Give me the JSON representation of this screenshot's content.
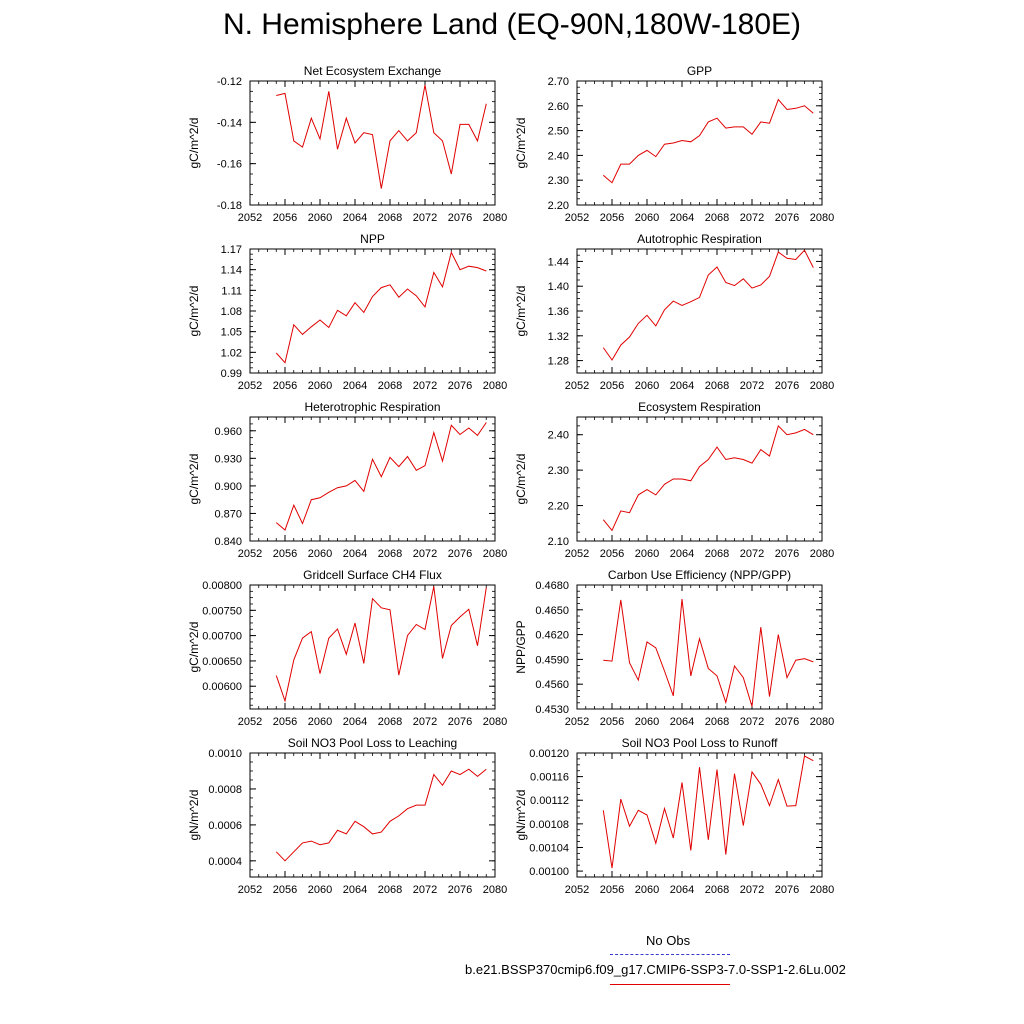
{
  "title": "N. Hemisphere Land (EQ-90N,180W-180E)",
  "legend": {
    "obs_label": "No Obs",
    "obs_color": "#3a3acc",
    "model_label": "b.e21.BSSP370cmip6.f09_g17.CMIP6-SSP3-7.0-SSP1-2.6Lu.002",
    "model_color": "#e00000"
  },
  "chart_data": [
    {
      "type": "line",
      "title": "Net Ecosystem Exchange",
      "ylabel": "gC/m^2/d",
      "xlim": [
        2052,
        2080
      ],
      "xticks": [
        "2052",
        "2056",
        "2060",
        "2064",
        "2068",
        "2072",
        "2076",
        "2080"
      ],
      "ylim": [
        -0.18,
        -0.12
      ],
      "yticks": [
        "-0.18",
        "-0.16",
        "-0.14",
        "-0.12"
      ],
      "x": [
        2055,
        2056,
        2057,
        2058,
        2059,
        2060,
        2061,
        2062,
        2063,
        2064,
        2065,
        2066,
        2067,
        2068,
        2069,
        2070,
        2071,
        2072,
        2073,
        2074,
        2075,
        2076,
        2077,
        2078,
        2079
      ],
      "series": [
        {
          "values": [
            -0.127,
            -0.126,
            -0.149,
            -0.152,
            -0.138,
            -0.148,
            -0.125,
            -0.153,
            -0.138,
            -0.15,
            -0.145,
            -0.146,
            -0.172,
            -0.149,
            -0.144,
            -0.149,
            -0.145,
            -0.122,
            -0.145,
            -0.149,
            -0.165,
            -0.141,
            -0.141,
            -0.149,
            -0.131
          ]
        }
      ]
    },
    {
      "type": "line",
      "title": "GPP",
      "ylabel": "gC/m^2/d",
      "xlim": [
        2052,
        2080
      ],
      "xticks": [
        "2052",
        "2056",
        "2060",
        "2064",
        "2068",
        "2072",
        "2076",
        "2080"
      ],
      "ylim": [
        2.2,
        2.7
      ],
      "yticks": [
        "2.20",
        "2.30",
        "2.40",
        "2.50",
        "2.60",
        "2.70"
      ],
      "x": [
        2055,
        2056,
        2057,
        2058,
        2059,
        2060,
        2061,
        2062,
        2063,
        2064,
        2065,
        2066,
        2067,
        2068,
        2069,
        2070,
        2071,
        2072,
        2073,
        2074,
        2075,
        2076,
        2077,
        2078,
        2079
      ],
      "series": [
        {
          "values": [
            2.32,
            2.29,
            2.365,
            2.365,
            2.4,
            2.42,
            2.395,
            2.445,
            2.45,
            2.46,
            2.455,
            2.48,
            2.535,
            2.55,
            2.51,
            2.515,
            2.515,
            2.485,
            2.535,
            2.53,
            2.625,
            2.585,
            2.59,
            2.6,
            2.57
          ]
        }
      ]
    },
    {
      "type": "line",
      "title": "NPP",
      "ylabel": "gC/m^2/d",
      "xlim": [
        2052,
        2080
      ],
      "xticks": [
        "2052",
        "2056",
        "2060",
        "2064",
        "2068",
        "2072",
        "2076",
        "2080"
      ],
      "ylim": [
        0.99,
        1.17
      ],
      "yticks": [
        "0.99",
        "1.02",
        "1.05",
        "1.08",
        "1.11",
        "1.14",
        "1.17"
      ],
      "x": [
        2055,
        2056,
        2057,
        2058,
        2059,
        2060,
        2061,
        2062,
        2063,
        2064,
        2065,
        2066,
        2067,
        2068,
        2069,
        2070,
        2071,
        2072,
        2073,
        2074,
        2075,
        2076,
        2077,
        2078,
        2079
      ],
      "series": [
        {
          "values": [
            1.019,
            1.005,
            1.06,
            1.046,
            1.057,
            1.067,
            1.056,
            1.081,
            1.073,
            1.092,
            1.078,
            1.101,
            1.114,
            1.118,
            1.1,
            1.112,
            1.102,
            1.086,
            1.136,
            1.115,
            1.165,
            1.14,
            1.145,
            1.143,
            1.138
          ]
        }
      ]
    },
    {
      "type": "line",
      "title": "Autotrophic Respiration",
      "ylabel": "gC/m^2/d",
      "xlim": [
        2052,
        2080
      ],
      "xticks": [
        "2052",
        "2056",
        "2060",
        "2064",
        "2068",
        "2072",
        "2076",
        "2080"
      ],
      "ylim": [
        1.26,
        1.46
      ],
      "yticks": [
        "1.28",
        "1.32",
        "1.36",
        "1.40",
        "1.44"
      ],
      "x": [
        2055,
        2056,
        2057,
        2058,
        2059,
        2060,
        2061,
        2062,
        2063,
        2064,
        2065,
        2066,
        2067,
        2068,
        2069,
        2070,
        2071,
        2072,
        2073,
        2074,
        2075,
        2076,
        2077,
        2078,
        2079
      ],
      "series": [
        {
          "values": [
            1.301,
            1.281,
            1.305,
            1.318,
            1.34,
            1.353,
            1.336,
            1.362,
            1.376,
            1.369,
            1.375,
            1.382,
            1.418,
            1.431,
            1.406,
            1.401,
            1.412,
            1.397,
            1.402,
            1.416,
            1.455,
            1.445,
            1.443,
            1.458,
            1.43
          ]
        }
      ]
    },
    {
      "type": "line",
      "title": "Heterotrophic Respiration",
      "ylabel": "gC/m^2/d",
      "xlim": [
        2052,
        2080
      ],
      "xticks": [
        "2052",
        "2056",
        "2060",
        "2064",
        "2068",
        "2072",
        "2076",
        "2080"
      ],
      "ylim": [
        0.84,
        0.975
      ],
      "yticks": [
        "0.840",
        "0.870",
        "0.900",
        "0.930",
        "0.960"
      ],
      "x": [
        2055,
        2056,
        2057,
        2058,
        2059,
        2060,
        2061,
        2062,
        2063,
        2064,
        2065,
        2066,
        2067,
        2068,
        2069,
        2070,
        2071,
        2072,
        2073,
        2074,
        2075,
        2076,
        2077,
        2078,
        2079
      ],
      "series": [
        {
          "values": [
            0.86,
            0.852,
            0.879,
            0.859,
            0.885,
            0.887,
            0.893,
            0.898,
            0.9,
            0.906,
            0.894,
            0.929,
            0.91,
            0.931,
            0.921,
            0.932,
            0.917,
            0.922,
            0.958,
            0.927,
            0.966,
            0.956,
            0.963,
            0.955,
            0.969
          ]
        }
      ]
    },
    {
      "type": "line",
      "title": "Ecosystem Respiration",
      "ylabel": "gC/m^2/d",
      "xlim": [
        2052,
        2080
      ],
      "xticks": [
        "2052",
        "2056",
        "2060",
        "2064",
        "2068",
        "2072",
        "2076",
        "2080"
      ],
      "ylim": [
        2.1,
        2.45
      ],
      "yticks": [
        "2.10",
        "2.20",
        "2.30",
        "2.40"
      ],
      "x": [
        2055,
        2056,
        2057,
        2058,
        2059,
        2060,
        2061,
        2062,
        2063,
        2064,
        2065,
        2066,
        2067,
        2068,
        2069,
        2070,
        2071,
        2072,
        2073,
        2074,
        2075,
        2076,
        2077,
        2078,
        2079
      ],
      "series": [
        {
          "values": [
            2.16,
            2.13,
            2.185,
            2.18,
            2.23,
            2.245,
            2.23,
            2.26,
            2.275,
            2.275,
            2.27,
            2.31,
            2.33,
            2.365,
            2.33,
            2.335,
            2.33,
            2.32,
            2.358,
            2.34,
            2.425,
            2.4,
            2.405,
            2.415,
            2.4
          ]
        }
      ]
    },
    {
      "type": "line",
      "title": "Gridcell Surface CH4 Flux",
      "ylabel": "gC/m^2/d",
      "xlim": [
        2052,
        2080
      ],
      "xticks": [
        "2052",
        "2056",
        "2060",
        "2064",
        "2068",
        "2072",
        "2076",
        "2080"
      ],
      "ylim": [
        0.00555,
        0.008
      ],
      "yticks": [
        "0.00600",
        "0.00650",
        "0.00700",
        "0.00750",
        "0.00800"
      ],
      "x": [
        2055,
        2056,
        2057,
        2058,
        2059,
        2060,
        2061,
        2062,
        2063,
        2064,
        2065,
        2066,
        2067,
        2068,
        2069,
        2070,
        2071,
        2072,
        2073,
        2074,
        2075,
        2076,
        2077,
        2078,
        2079
      ],
      "series": [
        {
          "values": [
            0.00621,
            0.00571,
            0.00652,
            0.00695,
            0.00708,
            0.00625,
            0.00695,
            0.00713,
            0.00663,
            0.00725,
            0.00645,
            0.00773,
            0.00755,
            0.00751,
            0.00622,
            0.007,
            0.00722,
            0.00712,
            0.00797,
            0.00655,
            0.0072,
            0.00737,
            0.00752,
            0.0068,
            0.00795
          ]
        }
      ]
    },
    {
      "type": "line",
      "title": "Carbon Use Efficiency (NPP/GPP)",
      "ylabel": "NPP/GPP",
      "xlim": [
        2052,
        2080
      ],
      "xticks": [
        "2052",
        "2056",
        "2060",
        "2064",
        "2068",
        "2072",
        "2076",
        "2080"
      ],
      "ylim": [
        0.453,
        0.468
      ],
      "yticks": [
        "0.4530",
        "0.4560",
        "0.4590",
        "0.4620",
        "0.4650",
        "0.4680"
      ],
      "x": [
        2055,
        2056,
        2057,
        2058,
        2059,
        2060,
        2061,
        2062,
        2063,
        2064,
        2065,
        2066,
        2067,
        2068,
        2069,
        2070,
        2071,
        2072,
        2073,
        2074,
        2075,
        2076,
        2077,
        2078,
        2079
      ],
      "series": [
        {
          "values": [
            0.4589,
            0.4588,
            0.4662,
            0.4586,
            0.4565,
            0.4611,
            0.4604,
            0.4576,
            0.4546,
            0.4663,
            0.457,
            0.4615,
            0.4579,
            0.457,
            0.4538,
            0.4582,
            0.4568,
            0.4533,
            0.4629,
            0.4545,
            0.462,
            0.4568,
            0.4589,
            0.4591,
            0.4587
          ]
        }
      ]
    },
    {
      "type": "line",
      "title": "Soil NO3 Pool Loss to Leaching",
      "ylabel": "gN/m^2/d",
      "xlim": [
        2052,
        2080
      ],
      "xticks": [
        "2052",
        "2056",
        "2060",
        "2064",
        "2068",
        "2072",
        "2076",
        "2080"
      ],
      "ylim": [
        0.00031,
        0.001
      ],
      "yticks": [
        "0.0004",
        "0.0006",
        "0.0008",
        "0.0010"
      ],
      "x": [
        2055,
        2056,
        2057,
        2058,
        2059,
        2060,
        2061,
        2062,
        2063,
        2064,
        2065,
        2066,
        2067,
        2068,
        2069,
        2070,
        2071,
        2072,
        2073,
        2074,
        2075,
        2076,
        2077,
        2078,
        2079
      ],
      "series": [
        {
          "values": [
            0.00045,
            0.0004,
            0.00045,
            0.0005,
            0.00051,
            0.00049,
            0.0005,
            0.00057,
            0.00055,
            0.00062,
            0.00059,
            0.00055,
            0.00056,
            0.00062,
            0.00065,
            0.00069,
            0.00071,
            0.00071,
            0.00088,
            0.00082,
            0.0009,
            0.00088,
            0.00091,
            0.00087,
            0.00091
          ]
        }
      ]
    },
    {
      "type": "line",
      "title": "Soil NO3 Pool Loss to Runoff",
      "ylabel": "gN/m^2/d",
      "xlim": [
        2052,
        2080
      ],
      "xticks": [
        "2052",
        "2056",
        "2060",
        "2064",
        "2068",
        "2072",
        "2076",
        "2080"
      ],
      "ylim": [
        0.00099,
        0.0012
      ],
      "yticks": [
        "0.00100",
        "0.00104",
        "0.00108",
        "0.00112",
        "0.00116",
        "0.00120"
      ],
      "x": [
        2055,
        2056,
        2057,
        2058,
        2059,
        2060,
        2061,
        2062,
        2063,
        2064,
        2065,
        2066,
        2067,
        2068,
        2069,
        2070,
        2071,
        2072,
        2073,
        2074,
        2075,
        2076,
        2077,
        2078,
        2079
      ],
      "series": [
        {
          "values": [
            0.001103,
            0.001005,
            0.001122,
            0.001076,
            0.001103,
            0.001095,
            0.001047,
            0.001106,
            0.001056,
            0.00115,
            0.001035,
            0.001176,
            0.001053,
            0.001172,
            0.001028,
            0.001165,
            0.001077,
            0.001168,
            0.001147,
            0.001111,
            0.001155,
            0.00111,
            0.001111,
            0.001195,
            0.001187
          ]
        }
      ]
    }
  ]
}
